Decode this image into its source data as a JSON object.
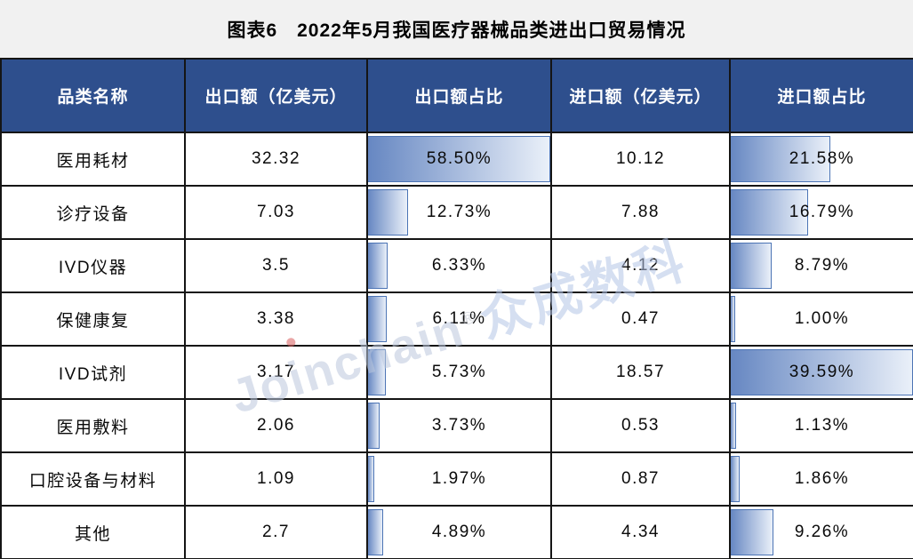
{
  "title": "图表6　2022年5月我国医疗器械品类进出口贸易情况",
  "table": {
    "headers": [
      "品类名称",
      "出口额（亿美元）",
      "出口额占比",
      "进口额（亿美元）",
      "进口额占比"
    ],
    "rows": [
      {
        "category": "医用耗材",
        "export_value": "32.32",
        "export_share": "58.50%",
        "export_share_pct": 58.5,
        "import_value": "10.12",
        "import_share": "21.58%",
        "import_share_pct": 21.58
      },
      {
        "category": "诊疗设备",
        "export_value": "7.03",
        "export_share": "12.73%",
        "export_share_pct": 12.73,
        "import_value": "7.88",
        "import_share": "16.79%",
        "import_share_pct": 16.79
      },
      {
        "category": "IVD仪器",
        "export_value": "3.5",
        "export_share": "6.33%",
        "export_share_pct": 6.33,
        "import_value": "4.12",
        "import_share": "8.79%",
        "import_share_pct": 8.79
      },
      {
        "category": "保健康复",
        "export_value": "3.38",
        "export_share": "6.11%",
        "export_share_pct": 6.11,
        "import_value": "0.47",
        "import_share": "1.00%",
        "import_share_pct": 1.0
      },
      {
        "category": "IVD试剂",
        "export_value": "3.17",
        "export_share": "5.73%",
        "export_share_pct": 5.73,
        "import_value": "18.57",
        "import_share": "39.59%",
        "import_share_pct": 39.59
      },
      {
        "category": "医用敷料",
        "export_value": "2.06",
        "export_share": "3.73%",
        "export_share_pct": 3.73,
        "import_value": "0.53",
        "import_share": "1.13%",
        "import_share_pct": 1.13
      },
      {
        "category": "口腔设备与材料",
        "export_value": "1.09",
        "export_share": "1.97%",
        "export_share_pct": 1.97,
        "import_value": "0.87",
        "import_share": "1.86%",
        "import_share_pct": 1.86
      },
      {
        "category": "其他",
        "export_value": "2.7",
        "export_share": "4.89%",
        "export_share_pct": 4.89,
        "import_value": "4.34",
        "import_share": "9.26%",
        "import_share_pct": 9.26
      }
    ]
  },
  "watermark": {
    "en": "Joinchain",
    "reg": "®",
    "cn": "众成数科"
  },
  "colors": {
    "header_bg": "#2E4F8D",
    "bar_gradient_start": "#6687C2",
    "bar_gradient_end": "#EAF0F9",
    "bar_border": "#4C74B5",
    "title_bg": "#F1F1F1",
    "grid_line": "#151515",
    "watermark": "#BCC8DE"
  },
  "chart_data": {
    "type": "table",
    "title": "图表6　2022年5月我国医疗器械品类进出口贸易情况",
    "columns": [
      "品类名称",
      "出口额（亿美元）",
      "出口额占比",
      "进口额（亿美元）",
      "进口额占比"
    ],
    "rows": [
      [
        "医用耗材",
        32.32,
        "58.50%",
        10.12,
        "21.58%"
      ],
      [
        "诊疗设备",
        7.03,
        "12.73%",
        7.88,
        "16.79%"
      ],
      [
        "IVD仪器",
        3.5,
        "6.33%",
        4.12,
        "8.79%"
      ],
      [
        "保健康复",
        3.38,
        "6.11%",
        0.47,
        "1.00%"
      ],
      [
        "IVD试剂",
        3.17,
        "5.73%",
        18.57,
        "39.59%"
      ],
      [
        "医用敷料",
        2.06,
        "3.73%",
        0.53,
        "1.13%"
      ],
      [
        "口腔设备与材料",
        1.09,
        "1.97%",
        0.87,
        "1.86%"
      ],
      [
        "其他",
        2.7,
        "4.89%",
        4.34,
        "9.26%"
      ]
    ],
    "databar_columns": [
      "出口额占比",
      "进口额占比"
    ],
    "databar_max": {
      "出口额占比": 58.5,
      "进口额占比": 39.59
    },
    "legend_position": "none",
    "notes": "data bars scaled to each column's maximum value"
  }
}
